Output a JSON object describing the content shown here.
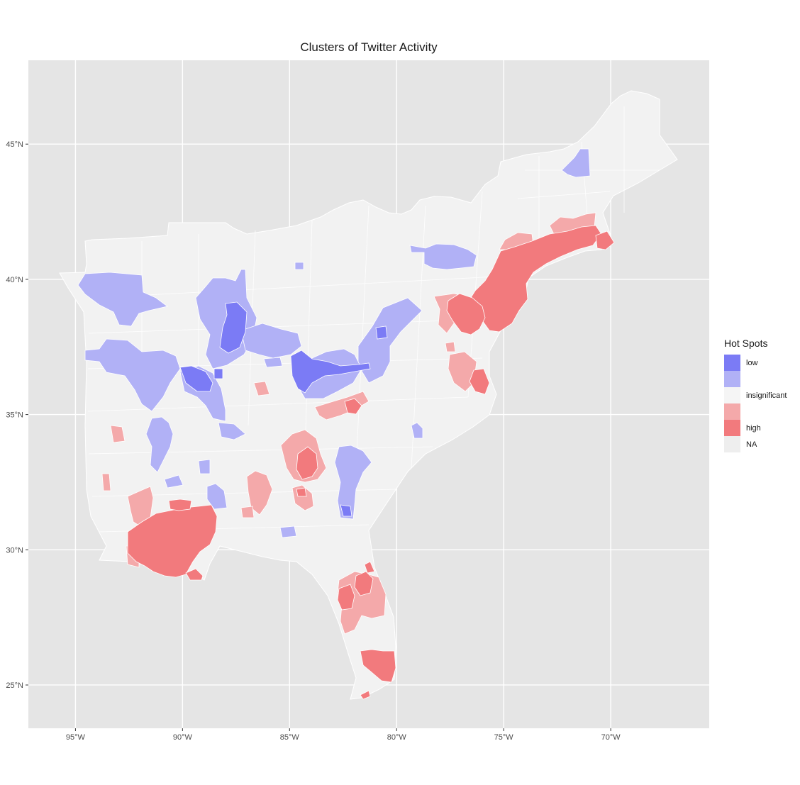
{
  "title": "Clusters of Twitter Activity",
  "colors": {
    "panel": "#e5e5e5",
    "grid": "#ffffff",
    "land": "#f2f2f2",
    "border": "#ffffff",
    "low_strong": "#7b7bf5",
    "low_weak": "#b1b1f6",
    "insignificant": "#f5f5f5",
    "high_weak": "#f4a9aa",
    "high_strong": "#f27a7d",
    "na": "#eeeeee"
  },
  "map": {
    "lon_range": [
      -97.2,
      -65.4
    ],
    "lat_range": [
      23.4,
      48.1
    ],
    "x_ticks": [
      {
        "value": -95,
        "label": "95°W"
      },
      {
        "value": -90,
        "label": "90°W"
      },
      {
        "value": -85,
        "label": "85°W"
      },
      {
        "value": -80,
        "label": "80°W"
      },
      {
        "value": -75,
        "label": "75°W"
      },
      {
        "value": -70,
        "label": "70°W"
      }
    ],
    "y_ticks": [
      {
        "value": 25,
        "label": "25°N"
      },
      {
        "value": 30,
        "label": "30°N"
      },
      {
        "value": 35,
        "label": "35°N"
      },
      {
        "value": 40,
        "label": "40°N"
      },
      {
        "value": 45,
        "label": "45°N"
      }
    ]
  },
  "legend": {
    "title": "Hot Spots",
    "items": [
      {
        "label": "low",
        "color": "#7b7bf5"
      },
      {
        "label": "",
        "color": "#b1b1f6"
      },
      {
        "label": "insignificant",
        "color": "#f5f5f5"
      },
      {
        "label": "",
        "color": "#f4a9aa"
      },
      {
        "label": "high",
        "color": "#f27a7d"
      },
      {
        "label": "NA",
        "color": "#eeeeee"
      }
    ]
  }
}
